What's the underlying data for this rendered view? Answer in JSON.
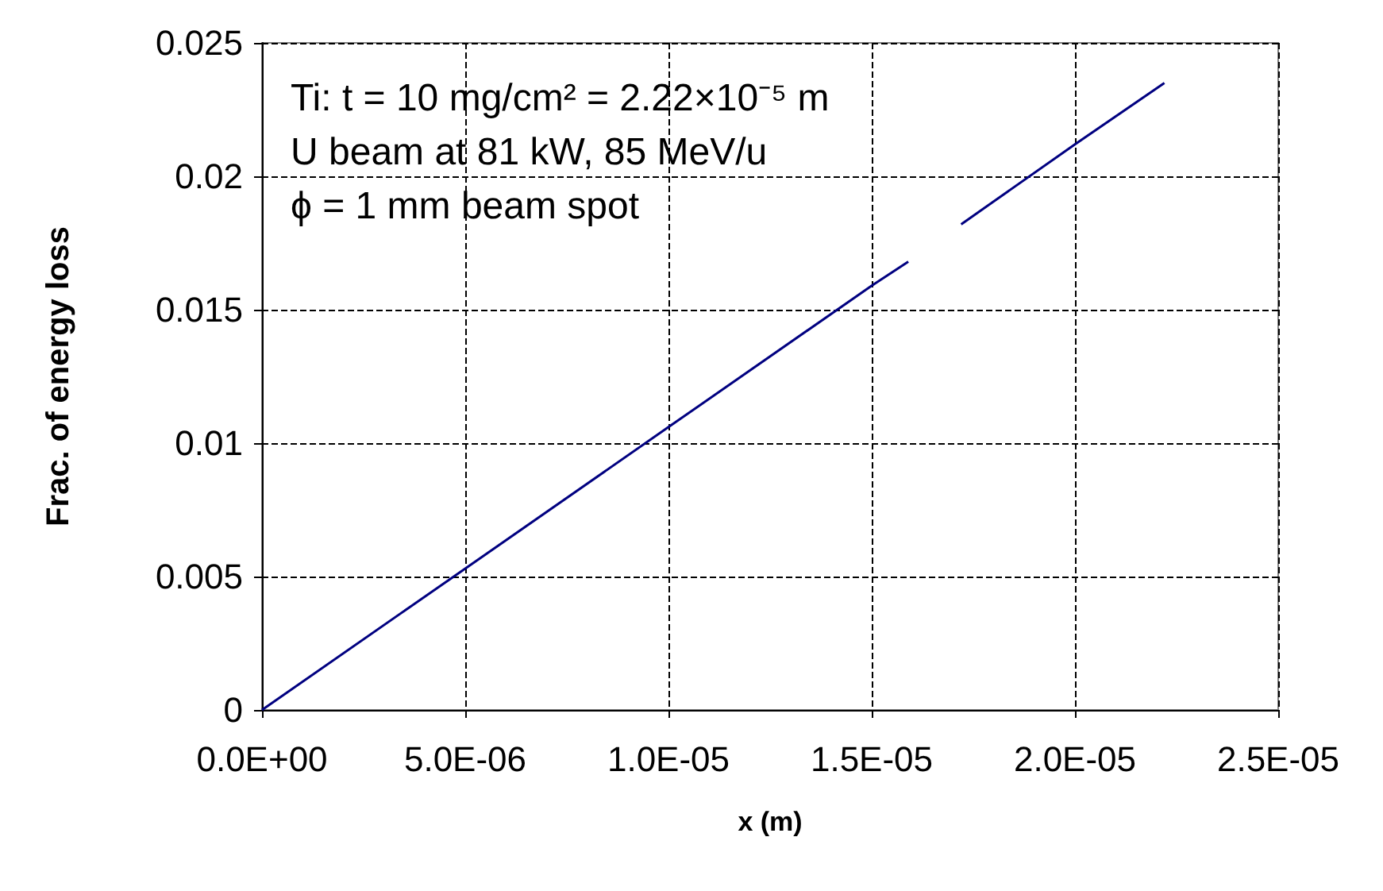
{
  "chart_data": {
    "type": "line",
    "xlabel": "x (m)",
    "ylabel": "Frac. of energy loss",
    "x": [
      0,
      5e-06,
      1e-05,
      1.5e-05,
      1.59e-05,
      1.65e-05,
      1.72e-05,
      2e-05,
      2.22e-05
    ],
    "series": [
      {
        "color": "#000080",
        "values": [
          0,
          0.0053,
          0.0106,
          0.0159,
          0.0168,
          null,
          0.0182,
          0.0212,
          0.0235
        ]
      }
    ],
    "xlim": [
      0,
      2.5e-05
    ],
    "xticks": [
      {
        "value": 0,
        "label": "0.0E+00"
      },
      {
        "value": 5e-06,
        "label": "5.0E-06"
      },
      {
        "value": 1e-05,
        "label": "1.0E-05"
      },
      {
        "value": 1.5e-05,
        "label": "1.5E-05"
      },
      {
        "value": 2e-05,
        "label": "2.0E-05"
      },
      {
        "value": 2.5e-05,
        "label": "2.5E-05"
      }
    ],
    "ylim": [
      0,
      0.025
    ],
    "yticks": [
      0,
      0.005,
      0.01,
      0.015,
      0.02,
      0.025
    ],
    "annotations": [
      "Ti: t = 10 mg/cm² = 2.22×10⁻⁵ m",
      "U beam at 81 kW, 85 MeV/u",
      "ϕ = 1 mm beam spot"
    ],
    "grid": true,
    "marker": "none",
    "line_style": "solid"
  }
}
